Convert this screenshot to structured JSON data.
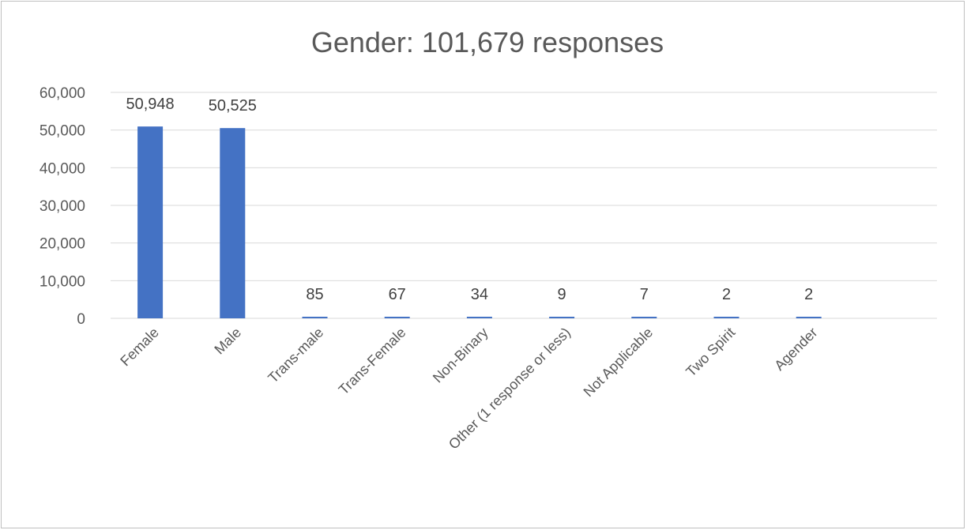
{
  "chart_data": {
    "type": "bar",
    "title": "Gender: 101,679 responses",
    "xlabel": "",
    "ylabel": "",
    "categories": [
      "Female",
      "Male",
      "Trans-male",
      "Trans-Female",
      "Non-Binary",
      "Other (1 response or less)",
      "Not Applicable",
      "Two Spirit",
      "Agender"
    ],
    "values": [
      50948,
      50525,
      85,
      67,
      34,
      9,
      7,
      2,
      2
    ],
    "data_labels": [
      "50,948",
      "50,525",
      "85",
      "67",
      "34",
      "9",
      "7",
      "2",
      "2"
    ],
    "ylim": [
      0,
      60000
    ],
    "yticks": [
      0,
      10000,
      20000,
      30000,
      40000,
      50000,
      60000
    ],
    "ytick_labels": [
      "0",
      "10,000",
      "20,000",
      "30,000",
      "40,000",
      "50,000",
      "60,000"
    ],
    "grid": true,
    "legend": "none",
    "bar_color": "#4472c4",
    "grid_color": "#d9d9d9"
  }
}
